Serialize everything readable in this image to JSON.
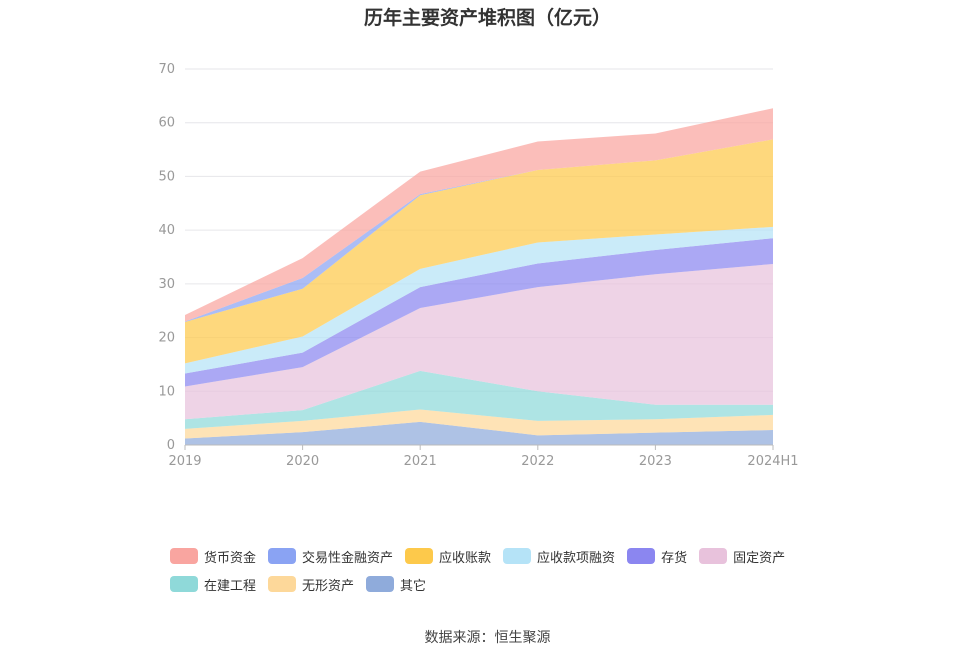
{
  "source_note": "数据来源：恒生聚源",
  "chart_data": {
    "type": "area",
    "stacked": true,
    "title": "历年主要资产堆积图（亿元）",
    "categories": [
      "2019",
      "2020",
      "2021",
      "2022",
      "2023",
      "2024H1"
    ],
    "ylim": [
      0,
      70
    ],
    "yticks": [
      0,
      10,
      20,
      30,
      40,
      50,
      60,
      70
    ],
    "grid": true,
    "legend_position": "bottom",
    "series": [
      {
        "name": "其它",
        "color": "#8fabdb",
        "values": [
          1.2,
          2.4,
          4.3,
          1.8,
          2.3,
          2.8
        ]
      },
      {
        "name": "无形资产",
        "color": "#fdd89a",
        "values": [
          1.8,
          2.1,
          2.3,
          2.7,
          2.5,
          2.8
        ]
      },
      {
        "name": "在建工程",
        "color": "#8fd9d9",
        "values": [
          1.8,
          2.0,
          7.2,
          5.5,
          2.7,
          1.9
        ]
      },
      {
        "name": "固定资产",
        "color": "#e8c2dc",
        "values": [
          6.1,
          8.0,
          11.7,
          19.4,
          24.3,
          26.2
        ]
      },
      {
        "name": "存货",
        "color": "#8b86f0",
        "values": [
          2.4,
          2.7,
          3.9,
          4.4,
          4.5,
          4.8
        ]
      },
      {
        "name": "应收款项融资",
        "color": "#b5e3f7",
        "values": [
          1.9,
          3.0,
          3.4,
          3.9,
          2.9,
          2.1
        ]
      },
      {
        "name": "应收账款",
        "color": "#fdc94b",
        "values": [
          7.7,
          8.9,
          13.7,
          13.5,
          13.8,
          16.3
        ]
      },
      {
        "name": "交易性金融资产",
        "color": "#8aa3f3",
        "values": [
          0.1,
          2.0,
          0.2,
          0.0,
          0.0,
          0.0
        ]
      },
      {
        "name": "货币资金",
        "color": "#f9a5a0",
        "values": [
          1.2,
          3.7,
          4.2,
          5.3,
          5.0,
          5.8
        ]
      }
    ],
    "legend_order": [
      "货币资金",
      "交易性金融资产",
      "应收账款",
      "应收款项融资",
      "存货",
      "固定资产",
      "在建工程",
      "无形资产",
      "其它"
    ]
  }
}
